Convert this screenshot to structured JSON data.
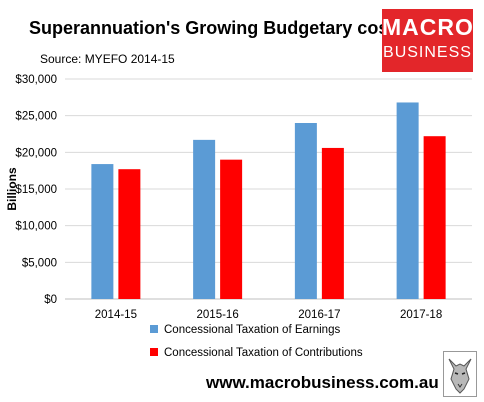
{
  "header": {
    "title": "Superannuation's Growing Budgetary cost",
    "source": "Source: MYEFO 2014-15"
  },
  "logo": {
    "line1": "MACRO",
    "line2": "BUSINESS",
    "color": "#e3262a"
  },
  "footer": {
    "url": "www.macrobusiness.com.au"
  },
  "chart_data": {
    "type": "bar",
    "categories": [
      "2014-15",
      "2015-16",
      "2016-17",
      "2017-18"
    ],
    "series": [
      {
        "name": "Concessional Taxation of Earnings",
        "color": "#5b9bd5",
        "values": [
          18400,
          21700,
          24000,
          26800
        ]
      },
      {
        "name": "Concessional Taxation of Contributions",
        "color": "#ff0000",
        "values": [
          17700,
          19000,
          20600,
          22200
        ]
      }
    ],
    "ylabel": "Billions",
    "xlabel": "",
    "ylim": [
      0,
      30000
    ],
    "yticks": [
      "$0",
      "$5,000",
      "$10,000",
      "$15,000",
      "$20,000",
      "$25,000",
      "$30,000"
    ],
    "grid": true,
    "legend": "bottom"
  }
}
